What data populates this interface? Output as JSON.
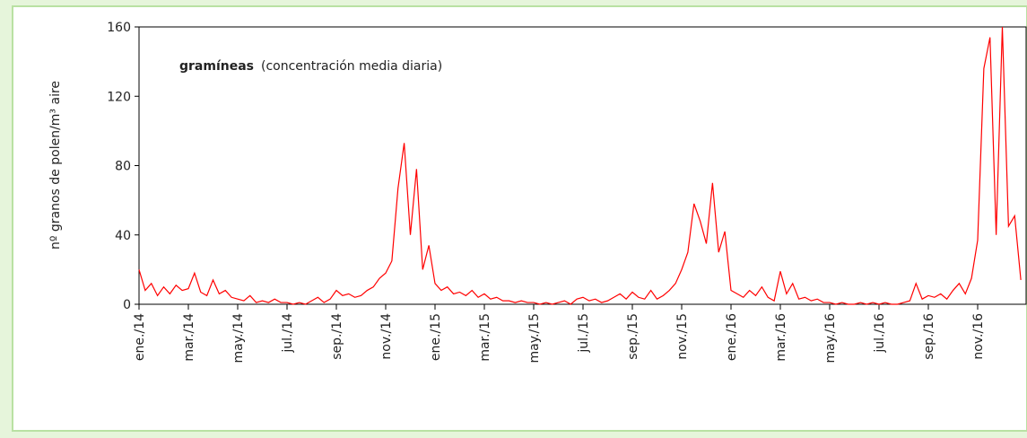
{
  "chart_data": {
    "type": "line",
    "title": "gramíneas",
    "subtitle": "(concentración media diaria)",
    "y_label": "nº granos de polen/m³ aire",
    "categories": [
      "ene./14",
      null,
      null,
      null,
      null,
      null,
      null,
      null,
      "mar./14",
      null,
      null,
      null,
      null,
      null,
      null,
      null,
      "may./14",
      null,
      null,
      null,
      null,
      null,
      null,
      null,
      "jul./14",
      null,
      null,
      null,
      null,
      null,
      null,
      null,
      "sep./14",
      null,
      null,
      null,
      null,
      null,
      null,
      null,
      "nov./14",
      null,
      null,
      null,
      null,
      null,
      null,
      null,
      "ene./15",
      null,
      null,
      null,
      null,
      null,
      null,
      null,
      "mar./15",
      null,
      null,
      null,
      null,
      null,
      null,
      null,
      "may./15",
      null,
      null,
      null,
      null,
      null,
      null,
      null,
      "jul./15",
      null,
      null,
      null,
      null,
      null,
      null,
      null,
      "sep./15",
      null,
      null,
      null,
      null,
      null,
      null,
      null,
      "nov./15",
      null,
      null,
      null,
      null,
      null,
      null,
      null,
      "ene./16",
      null,
      null,
      null,
      null,
      null,
      null,
      null,
      "mar./16",
      null,
      null,
      null,
      null,
      null,
      null,
      null,
      "may./16",
      null,
      null,
      null,
      null,
      null,
      null,
      null,
      "jul./16",
      null,
      null,
      null,
      null,
      null,
      null,
      null,
      "sep./16",
      null,
      null,
      null,
      null,
      null,
      null,
      null,
      "nov./16",
      null,
      null,
      null,
      null,
      null,
      null,
      null
    ],
    "values": [
      20,
      8,
      12,
      5,
      10,
      6,
      11,
      8,
      9,
      18,
      7,
      5,
      14,
      6,
      8,
      4,
      3,
      2,
      5,
      1,
      2,
      1,
      3,
      1,
      1,
      0,
      1,
      0,
      2,
      4,
      1,
      3,
      8,
      5,
      6,
      4,
      5,
      8,
      10,
      15,
      18,
      25,
      67,
      93,
      40,
      78,
      20,
      34,
      12,
      8,
      10,
      6,
      7,
      5,
      8,
      4,
      6,
      3,
      4,
      2,
      2,
      1,
      2,
      1,
      1,
      0,
      1,
      0,
      1,
      2,
      0,
      3,
      4,
      2,
      3,
      1,
      2,
      4,
      6,
      3,
      7,
      4,
      3,
      8,
      3,
      5,
      8,
      12,
      20,
      30,
      58,
      48,
      35,
      70,
      30,
      42,
      8,
      6,
      4,
      8,
      5,
      10,
      4,
      2,
      19,
      6,
      12,
      3,
      4,
      2,
      3,
      1,
      1,
      0,
      1,
      0,
      0,
      1,
      0,
      1,
      0,
      1,
      0,
      0,
      1,
      2,
      12,
      3,
      5,
      4,
      6,
      3,
      8,
      12,
      6,
      15,
      37,
      136,
      154,
      40,
      160,
      45,
      51,
      14
    ],
    "color": "#ff0000",
    "ylim": [
      0,
      160
    ],
    "yticks": [
      0,
      40,
      80,
      120,
      160
    ]
  }
}
